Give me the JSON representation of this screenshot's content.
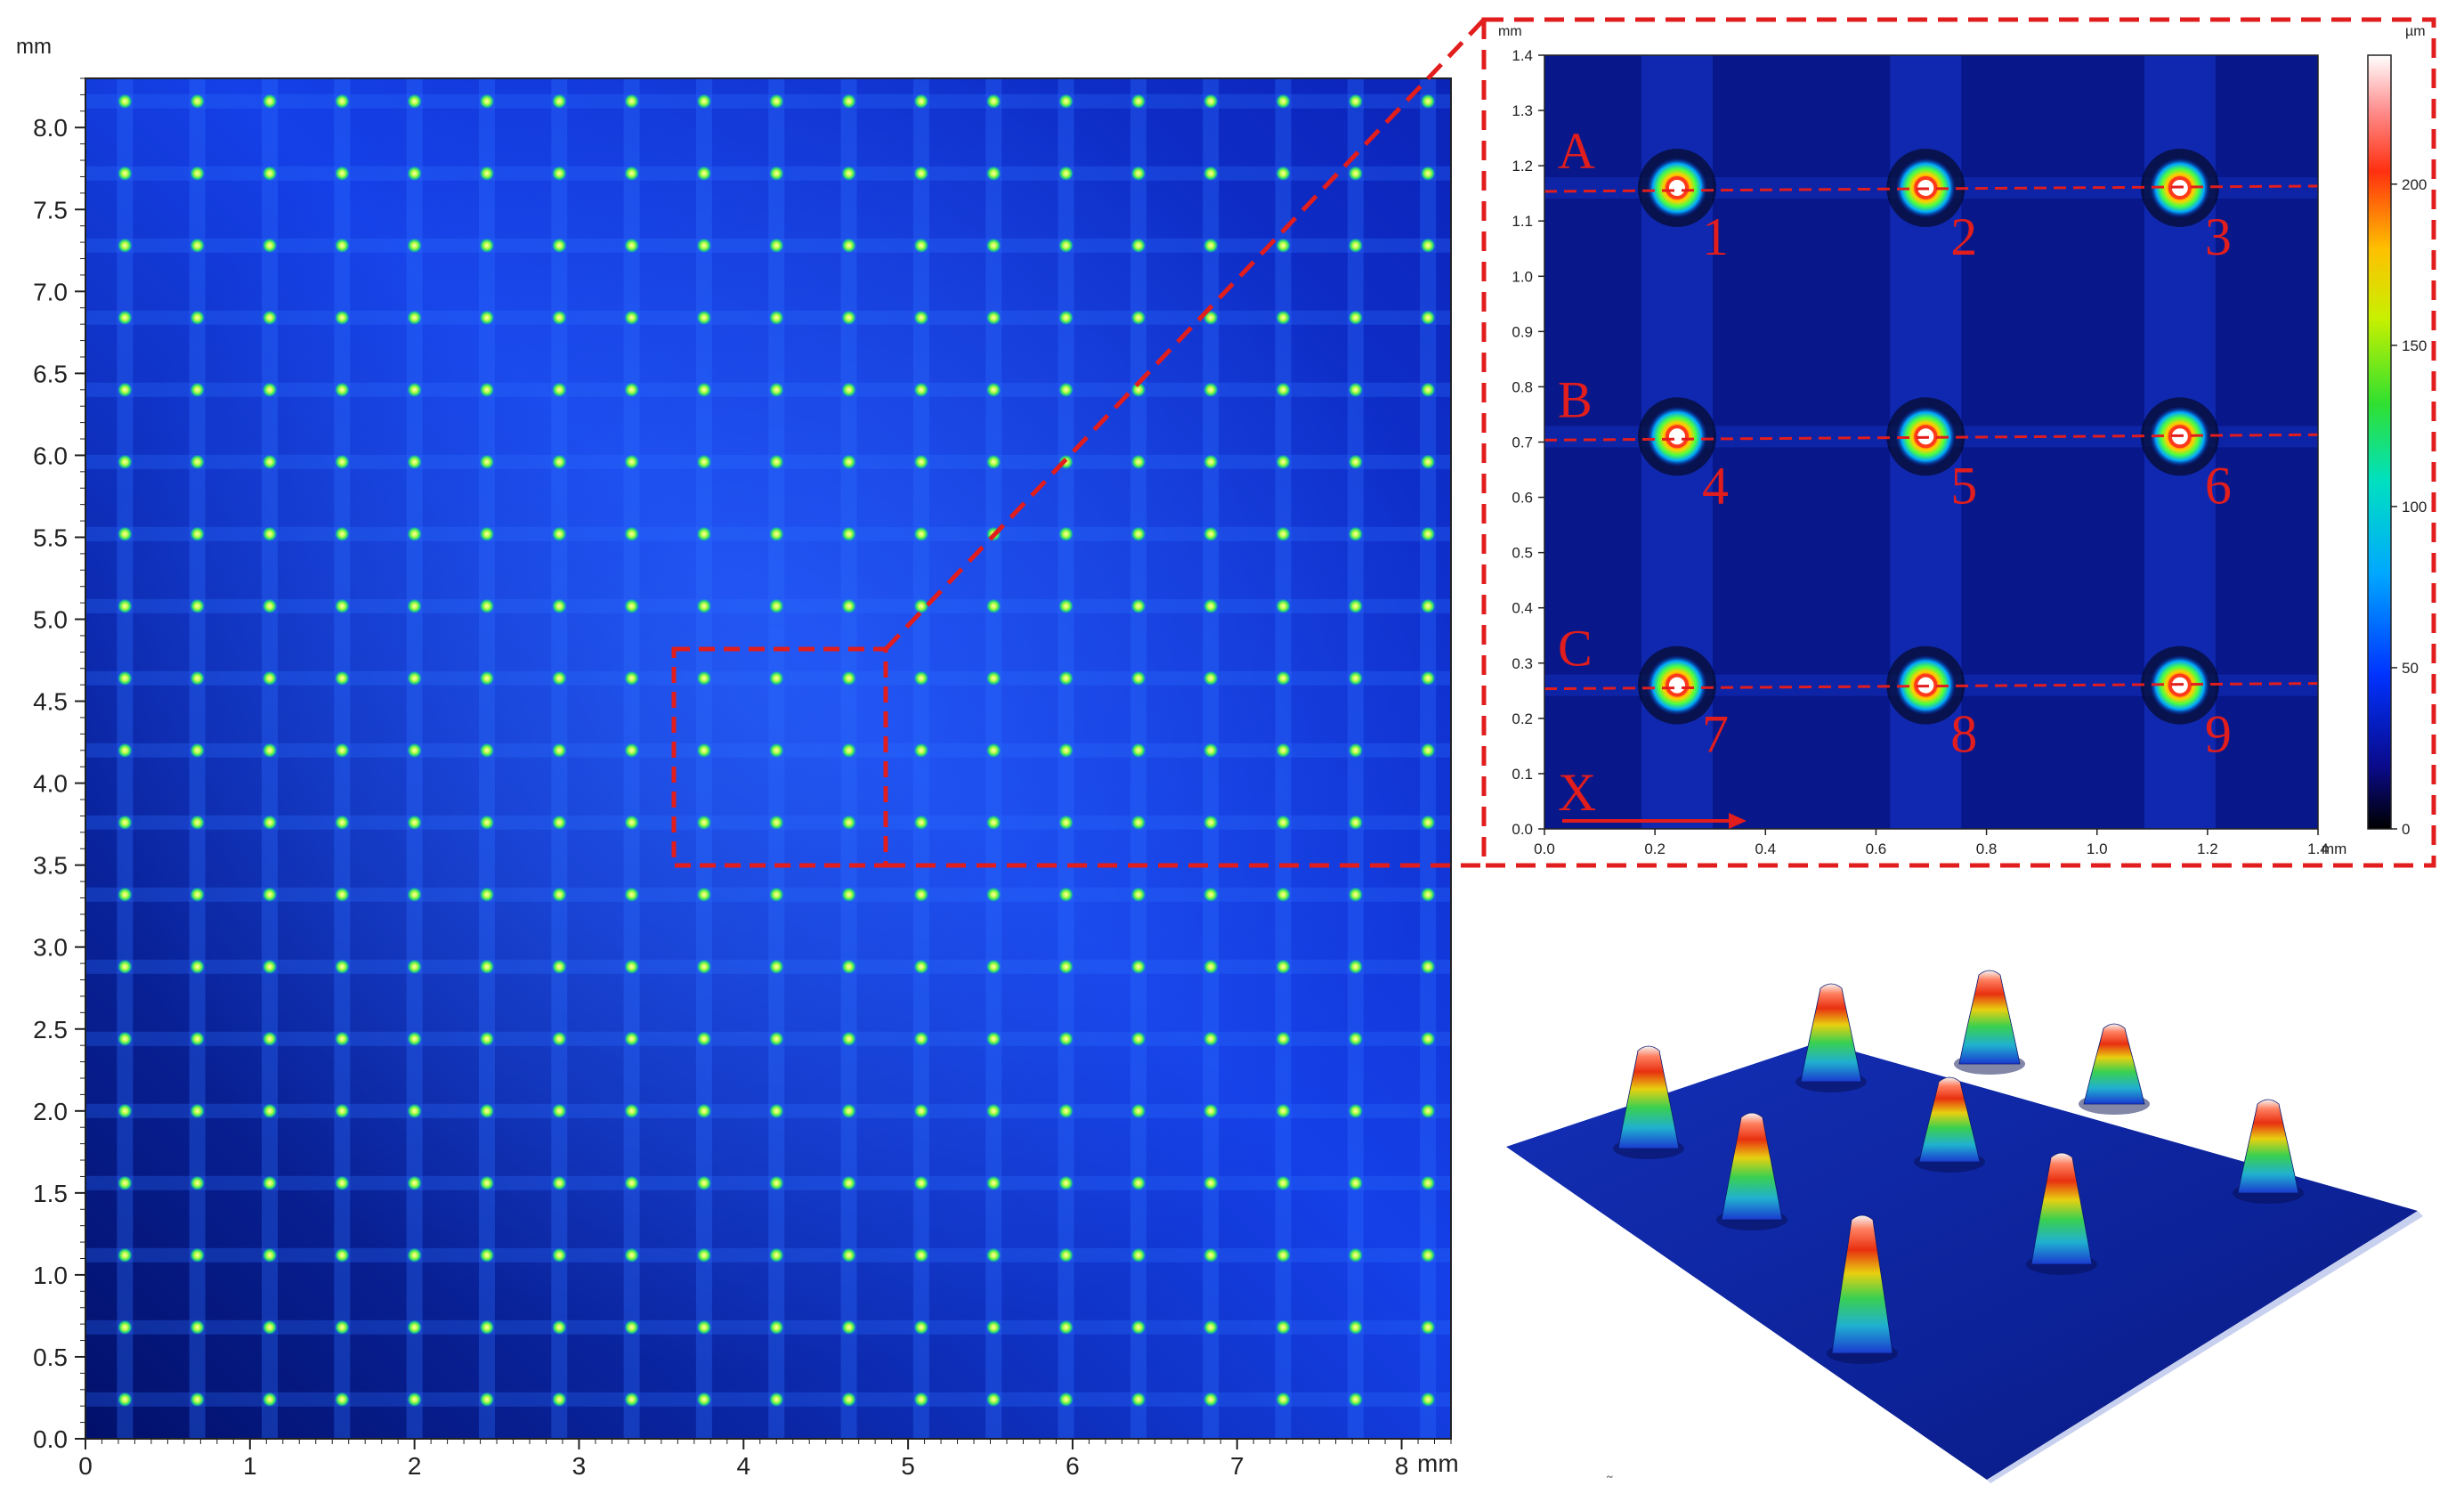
{
  "colors": {
    "background": "#0a1e9e",
    "accent_red": "#e11d1d",
    "axis": "#222222"
  },
  "chart_data": [
    {
      "type": "heatmap",
      "title": "",
      "xlabel": "",
      "ylabel": "",
      "x_unit": "mm",
      "y_unit": "mm",
      "xlim": [
        0,
        8.3
      ],
      "ylim": [
        0,
        8.3
      ],
      "x_ticks": [
        "0",
        "1",
        "2",
        "3",
        "4",
        "5",
        "6",
        "7",
        "8"
      ],
      "y_ticks": [
        "0.0",
        "0.5",
        "1.0",
        "1.5",
        "2.0",
        "2.5",
        "3.0",
        "3.5",
        "4.0",
        "4.5",
        "5.0",
        "5.5",
        "6.0",
        "6.5",
        "7.0",
        "7.5",
        "8.0"
      ],
      "dot_pitch_mm": 0.44,
      "dot_start_mm": 0.24,
      "dot_count_x": 19,
      "dot_count_y": 19,
      "zoom_region_mm": {
        "x": [
          3.62,
          4.92
        ],
        "y": [
          3.5,
          4.85
        ]
      }
    },
    {
      "type": "heatmap",
      "x_unit": "mm",
      "y_unit": "mm",
      "z_unit": "µm",
      "xlim": [
        0,
        1.4
      ],
      "ylim": [
        0,
        1.4
      ],
      "x_ticks": [
        "0.0",
        "0.2",
        "0.4",
        "0.6",
        "0.8",
        "1.0",
        "1.2",
        "1.4"
      ],
      "y_ticks": [
        "0.0",
        "0.1",
        "0.2",
        "0.3",
        "0.4",
        "0.5",
        "0.6",
        "0.7",
        "0.8",
        "0.9",
        "1.0",
        "1.1",
        "1.2",
        "1.3",
        "1.4"
      ],
      "colorbar_ticks": [
        "0",
        "50",
        "100",
        "150",
        "200"
      ],
      "colorbar_range": [
        0,
        240
      ],
      "rows": [
        {
          "label": "A",
          "y_mm": 1.16,
          "points": [
            {
              "label": "1",
              "x_mm": 0.24
            },
            {
              "label": "2",
              "x_mm": 0.69
            },
            {
              "label": "3",
              "x_mm": 1.15
            }
          ]
        },
        {
          "label": "B",
          "y_mm": 0.71,
          "points": [
            {
              "label": "4",
              "x_mm": 0.24
            },
            {
              "label": "5",
              "x_mm": 0.69
            },
            {
              "label": "6",
              "x_mm": 1.15
            }
          ]
        },
        {
          "label": "C",
          "y_mm": 0.26,
          "points": [
            {
              "label": "7",
              "x_mm": 0.24
            },
            {
              "label": "8",
              "x_mm": 0.69
            },
            {
              "label": "9",
              "x_mm": 1.15
            }
          ]
        }
      ],
      "x_arrow_label": "X"
    },
    {
      "type": "surface3d",
      "pillar_count": 9,
      "note_mark": "˜"
    }
  ]
}
